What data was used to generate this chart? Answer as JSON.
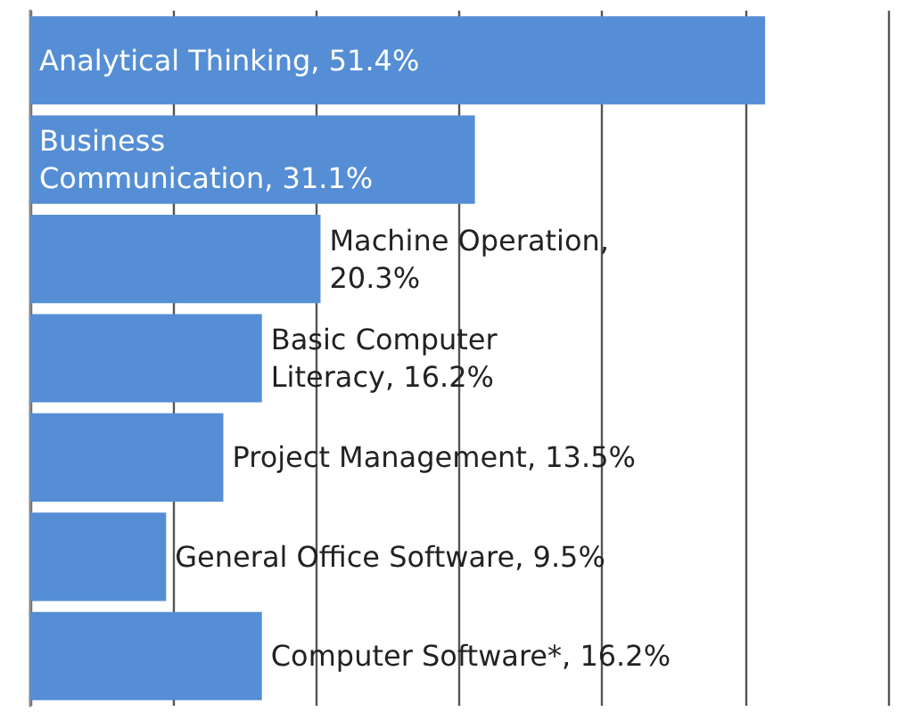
{
  "chart_data": {
    "type": "bar",
    "orientation": "horizontal",
    "categories": [
      null,
      null,
      null,
      null,
      null,
      null,
      null
    ],
    "values": [
      51.4,
      31.1,
      20.3,
      16.2,
      13.5,
      9.5,
      16.2
    ],
    "value_labels": [
      "Analytical Thinking, 51.4%",
      "Business\nCommunication, 31.1%",
      "Machine Operation,\n20.3%",
      "Basic Computer\nLiteracy, 16.2%",
      "Project Management, 13.5%",
      "General Office Software, 9.5%",
      "Computer Software*, 16.2%"
    ],
    "color": "#558ed5",
    "xlim": [
      0,
      60
    ],
    "xticks": [
      {
        "value": 0,
        "label": null
      },
      {
        "value": 10,
        "label": null
      },
      {
        "value": 20,
        "label": null
      },
      {
        "value": 30,
        "label": null
      },
      {
        "value": 40,
        "label": null
      },
      {
        "value": 50,
        "label": null
      },
      {
        "value": 60,
        "label": null
      }
    ],
    "grid": "x"
  }
}
